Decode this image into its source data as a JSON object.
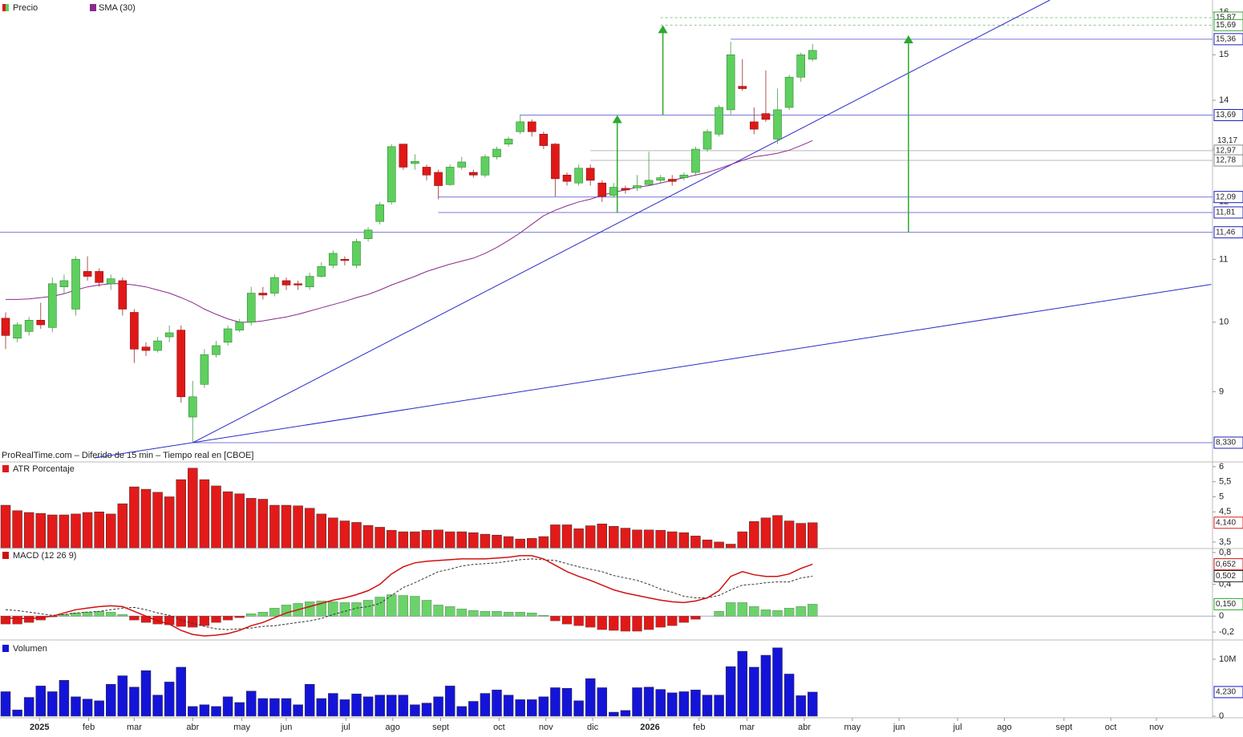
{
  "chart_data": [
    {
      "type": "candlestick",
      "name": "Precio",
      "source": "ProRealTime.com – Diferido de 15 min – Tiempo real en [CBOE]",
      "log": true,
      "ylim": [
        8.1,
        16.3
      ],
      "yticks": [
        9,
        10,
        11,
        12,
        13,
        14,
        15,
        16
      ],
      "up_color": "#5fcf5f",
      "down_color": "#e01818",
      "open": [
        10.06,
        9.76,
        9.86,
        10.03,
        9.92,
        10.55,
        10.2,
        10.8,
        10.8,
        10.6,
        10.65,
        10.15,
        9.63,
        9.58,
        9.78,
        9.88,
        8.66,
        9.1,
        9.52,
        9.7,
        9.88,
        10.0,
        10.45,
        10.45,
        10.65,
        10.6,
        10.55,
        10.72,
        10.9,
        11.0,
        10.9,
        11.35,
        11.65,
        12.0,
        13.1,
        12.72,
        12.65,
        12.55,
        12.32,
        12.65,
        12.55,
        12.5,
        12.85,
        13.1,
        13.35,
        13.55,
        13.3,
        13.1,
        12.5,
        12.35,
        12.63,
        12.35,
        12.12,
        12.25,
        12.26,
        12.32,
        12.4,
        12.42,
        12.45,
        12.55,
        13.0,
        13.3,
        13.8,
        14.3,
        13.55,
        13.72,
        13.2,
        13.85,
        14.5,
        14.9
      ],
      "high": [
        10.15,
        10.0,
        10.08,
        10.3,
        10.7,
        10.75,
        11.05,
        11.05,
        10.85,
        10.75,
        10.7,
        10.2,
        9.7,
        9.78,
        9.95,
        9.95,
        9.15,
        9.6,
        9.72,
        9.95,
        10.05,
        10.55,
        10.55,
        10.75,
        10.7,
        10.65,
        10.78,
        10.95,
        11.15,
        11.05,
        11.35,
        11.55,
        12.0,
        13.1,
        13.1,
        12.9,
        12.7,
        12.6,
        12.7,
        12.85,
        12.6,
        12.9,
        13.05,
        13.25,
        13.7,
        13.6,
        13.35,
        13.12,
        12.55,
        12.7,
        12.7,
        12.4,
        12.35,
        12.3,
        12.5,
        12.95,
        12.5,
        12.5,
        12.55,
        13.05,
        13.4,
        13.9,
        15.3,
        14.9,
        13.85,
        14.65,
        14.25,
        14.55,
        15.05,
        15.25
      ],
      "low": [
        9.6,
        9.7,
        9.8,
        9.9,
        9.85,
        10.45,
        10.1,
        10.65,
        10.55,
        10.5,
        10.1,
        9.4,
        9.5,
        9.55,
        9.7,
        8.85,
        8.33,
        9.05,
        9.48,
        9.65,
        9.85,
        9.95,
        10.35,
        10.4,
        10.5,
        10.5,
        10.5,
        10.7,
        10.85,
        10.9,
        10.85,
        11.3,
        11.6,
        11.95,
        12.6,
        12.6,
        12.4,
        12.05,
        12.3,
        12.6,
        12.45,
        12.45,
        12.8,
        13.05,
        13.3,
        13.25,
        13.0,
        12.1,
        12.3,
        12.3,
        12.3,
        12.0,
        12.08,
        12.15,
        12.2,
        12.3,
        12.35,
        12.3,
        12.4,
        12.5,
        12.95,
        13.25,
        13.7,
        14.2,
        13.3,
        13.55,
        13.1,
        13.8,
        14.4,
        14.85
      ],
      "close": [
        9.8,
        9.96,
        10.03,
        9.96,
        10.6,
        10.65,
        11.0,
        10.72,
        10.62,
        10.68,
        10.2,
        9.6,
        9.58,
        9.72,
        9.84,
        8.93,
        8.93,
        9.52,
        9.65,
        9.9,
        10.0,
        10.45,
        10.42,
        10.7,
        10.58,
        10.58,
        10.72,
        10.88,
        11.1,
        10.98,
        11.3,
        11.5,
        11.95,
        13.05,
        12.65,
        12.76,
        12.5,
        12.3,
        12.65,
        12.75,
        12.5,
        12.85,
        13.0,
        13.2,
        13.55,
        13.35,
        13.07,
        12.43,
        12.38,
        12.63,
        12.4,
        12.1,
        12.27,
        12.22,
        12.3,
        12.4,
        12.45,
        12.38,
        12.5,
        13.0,
        13.35,
        13.85,
        15.0,
        14.25,
        13.4,
        13.6,
        13.8,
        14.5,
        15.0,
        15.1
      ],
      "sma": {
        "name": "SMA (30)",
        "color": "#8b2a8b",
        "last_label": "13,17",
        "values": [
          10.35,
          10.35,
          10.36,
          10.38,
          10.4,
          10.44,
          10.5,
          10.55,
          10.58,
          10.6,
          10.6,
          10.58,
          10.55,
          10.5,
          10.45,
          10.38,
          10.3,
          10.2,
          10.12,
          10.05,
          10.0,
          10.0,
          10.02,
          10.05,
          10.08,
          10.12,
          10.17,
          10.22,
          10.27,
          10.32,
          10.38,
          10.43,
          10.5,
          10.58,
          10.65,
          10.72,
          10.8,
          10.86,
          10.92,
          10.97,
          11.02,
          11.1,
          11.2,
          11.32,
          11.45,
          11.6,
          11.75,
          11.85,
          11.93,
          12.0,
          12.05,
          12.12,
          12.18,
          12.22,
          12.27,
          12.3,
          12.35,
          12.4,
          12.45,
          12.5,
          12.55,
          12.62,
          12.7,
          12.78,
          12.85,
          12.88,
          12.92,
          12.98,
          13.07,
          13.17
        ]
      },
      "levels": [
        {
          "value": 15.87,
          "label": "15,87",
          "color": "#3aa63a",
          "start": 56,
          "style": "dashed"
        },
        {
          "value": 15.69,
          "label": "15,69",
          "color": "#3aa63a",
          "start": 56,
          "style": "dashed"
        },
        {
          "value": 15.36,
          "label": "15,36",
          "color": "#1f1fbf",
          "start": 62,
          "style": "solid"
        },
        {
          "value": 13.69,
          "label": "13,69",
          "color": "#1f1fbf",
          "start": 44,
          "style": "solid"
        },
        {
          "value": 12.97,
          "label": "12,97",
          "color": "#888888",
          "start": 50,
          "style": "solid"
        },
        {
          "value": 12.78,
          "label": "12,78",
          "color": "#888888",
          "start": 50,
          "style": "solid"
        },
        {
          "value": 12.09,
          "label": "12,09",
          "color": "#1f1fbf",
          "start": 37,
          "style": "solid"
        },
        {
          "value": 11.81,
          "label": "11,81",
          "color": "#1f1fbf",
          "start": 37,
          "style": "solid"
        },
        {
          "value": 11.46,
          "label": "11,46",
          "color": "#1f1fbf",
          "start": -0.5,
          "style": "solid"
        },
        {
          "value": 8.33,
          "label": "8,330",
          "color": "#1f1fbf",
          "start": 16,
          "style": "solid"
        }
      ],
      "trendlines": [
        {
          "color": "#2a2ac8",
          "points": [
            [
              16,
              8.33
            ],
            [
              89.3,
              16.3
            ]
          ]
        },
        {
          "color": "#2a2ac8",
          "points": [
            [
              7.6,
              8.14
            ],
            [
              103.1,
              10.59
            ]
          ]
        }
      ],
      "arrows": [
        {
          "color": "#2ea82e",
          "x": 52.3,
          "from": 11.81,
          "to": 13.69
        },
        {
          "color": "#2ea82e",
          "x": 56.2,
          "from": 13.69,
          "to": 15.69
        },
        {
          "color": "#2ea82e",
          "x": 77.2,
          "from": 11.46,
          "to": 15.45
        }
      ]
    },
    {
      "type": "bar",
      "name": "ATR Porcentaje",
      "color": "#e31a1a",
      "last_label": "4,140",
      "ylim": [
        3.31,
        6.13
      ],
      "yticks": [
        6,
        {
          "value": 5.5,
          "label": "5,5"
        },
        5,
        {
          "value": 4.5,
          "label": "4,5"
        },
        {
          "value": 3.5,
          "label": "3,5"
        }
      ],
      "values": [
        4.72,
        4.54,
        4.48,
        4.45,
        4.4,
        4.4,
        4.43,
        4.48,
        4.5,
        4.43,
        4.77,
        5.33,
        5.25,
        5.15,
        5.0,
        5.57,
        5.95,
        5.57,
        5.36,
        5.17,
        5.1,
        4.95,
        4.92,
        4.72,
        4.72,
        4.7,
        4.62,
        4.43,
        4.3,
        4.2,
        4.15,
        4.05,
        3.99,
        3.89,
        3.84,
        3.84,
        3.89,
        3.9,
        3.84,
        3.84,
        3.81,
        3.76,
        3.73,
        3.68,
        3.6,
        3.62,
        3.68,
        4.07,
        4.07,
        3.94,
        4.04,
        4.1,
        4.02,
        3.96,
        3.9,
        3.9,
        3.89,
        3.84,
        3.81,
        3.7,
        3.57,
        3.5,
        3.43,
        3.84,
        4.18,
        4.3,
        4.38,
        4.2,
        4.12,
        4.14
      ]
    },
    {
      "type": "macd",
      "name": "MACD (12 26 9)",
      "ylim": [
        -0.29,
        0.84
      ],
      "yticks": [
        {
          "value": 0.8,
          "label": "0,8"
        },
        {
          "value": 0.4,
          "label": "0,4"
        },
        0,
        {
          "value": -0.2,
          "label": "-0,2"
        }
      ],
      "macd": {
        "color": "#d01010",
        "last_label": "0,652",
        "values": [
          -0.02,
          -0.03,
          -0.03,
          -0.02,
          0.0,
          0.04,
          0.08,
          0.1,
          0.12,
          0.13,
          0.12,
          0.06,
          0.0,
          -0.06,
          -0.1,
          -0.18,
          -0.23,
          -0.25,
          -0.24,
          -0.22,
          -0.18,
          -0.12,
          -0.08,
          -0.02,
          0.04,
          0.08,
          0.12,
          0.16,
          0.2,
          0.23,
          0.27,
          0.32,
          0.4,
          0.53,
          0.62,
          0.67,
          0.69,
          0.7,
          0.71,
          0.72,
          0.72,
          0.72,
          0.73,
          0.74,
          0.76,
          0.76,
          0.72,
          0.64,
          0.56,
          0.5,
          0.45,
          0.39,
          0.33,
          0.29,
          0.26,
          0.23,
          0.2,
          0.18,
          0.17,
          0.19,
          0.23,
          0.32,
          0.5,
          0.56,
          0.52,
          0.5,
          0.5,
          0.53,
          0.6,
          0.652
        ]
      },
      "signal": {
        "color": "#333333",
        "last_label": "0,502",
        "values": [
          0.08,
          0.07,
          0.05,
          0.03,
          0.01,
          0.02,
          0.04,
          0.05,
          0.06,
          0.08,
          0.1,
          0.11,
          0.08,
          0.04,
          0.01,
          -0.05,
          -0.09,
          -0.13,
          -0.16,
          -0.17,
          -0.16,
          -0.15,
          -0.13,
          -0.12,
          -0.1,
          -0.08,
          -0.06,
          -0.03,
          0.02,
          0.06,
          0.1,
          0.12,
          0.16,
          0.26,
          0.36,
          0.42,
          0.49,
          0.56,
          0.59,
          0.63,
          0.65,
          0.66,
          0.67,
          0.69,
          0.71,
          0.72,
          0.71,
          0.7,
          0.66,
          0.62,
          0.59,
          0.56,
          0.51,
          0.48,
          0.45,
          0.4,
          0.34,
          0.3,
          0.25,
          0.23,
          0.23,
          0.26,
          0.33,
          0.39,
          0.4,
          0.42,
          0.43,
          0.43,
          0.48,
          0.502
        ]
      },
      "histogram": {
        "up_color": "#6ad36a",
        "down_color": "#e01818",
        "last_label": "0,150",
        "values": [
          -0.1,
          -0.1,
          -0.08,
          -0.05,
          -0.01,
          0.02,
          0.04,
          0.05,
          0.06,
          0.05,
          0.02,
          -0.05,
          -0.08,
          -0.1,
          -0.11,
          -0.13,
          -0.14,
          -0.12,
          -0.08,
          -0.05,
          -0.02,
          0.03,
          0.05,
          0.1,
          0.14,
          0.16,
          0.18,
          0.19,
          0.18,
          0.17,
          0.17,
          0.2,
          0.24,
          0.27,
          0.26,
          0.25,
          0.2,
          0.14,
          0.12,
          0.09,
          0.07,
          0.06,
          0.06,
          0.05,
          0.05,
          0.04,
          0.01,
          -0.06,
          -0.1,
          -0.12,
          -0.14,
          -0.17,
          -0.18,
          -0.19,
          -0.19,
          -0.17,
          -0.14,
          -0.12,
          -0.08,
          -0.04,
          0.0,
          0.06,
          0.17,
          0.17,
          0.12,
          0.08,
          0.07,
          0.1,
          0.12,
          0.15
        ]
      }
    },
    {
      "type": "bar",
      "name": "Volumen",
      "color": "#1414d8",
      "last_label": "4,230",
      "ylim": [
        0,
        13.1
      ],
      "yticks": [
        0,
        {
          "value": 10,
          "label": "10M"
        }
      ],
      "values": [
        4.3,
        1.1,
        3.3,
        5.3,
        4.3,
        6.3,
        3.4,
        3.0,
        2.7,
        5.6,
        7.1,
        5.1,
        8.0,
        3.7,
        6.0,
        8.6,
        1.7,
        2.0,
        1.7,
        3.4,
        2.4,
        4.4,
        3.1,
        3.1,
        3.1,
        2.0,
        5.6,
        3.1,
        4.0,
        2.9,
        3.9,
        3.4,
        3.7,
        3.7,
        3.7,
        2.0,
        2.3,
        3.4,
        5.3,
        1.7,
        2.6,
        4.0,
        4.6,
        3.7,
        2.9,
        2.9,
        3.4,
        5.0,
        4.9,
        2.7,
        6.6,
        5.0,
        0.7,
        1.0,
        5.0,
        5.1,
        4.7,
        4.1,
        4.3,
        4.6,
        3.7,
        3.7,
        8.7,
        11.4,
        8.6,
        10.7,
        12.0,
        7.4,
        3.6,
        4.23
      ],
      "xlim": [
        -0.48,
        103.2
      ],
      "xticks": [
        {
          "value": 2.9,
          "label": "2025"
        },
        {
          "value": 7.1,
          "label": "feb"
        },
        {
          "value": 11.0,
          "label": "mar"
        },
        {
          "value": 16.0,
          "label": "abr"
        },
        {
          "value": 20.2,
          "label": "may"
        },
        {
          "value": 24.0,
          "label": "jun"
        },
        {
          "value": 29.1,
          "label": "jul"
        },
        {
          "value": 33.1,
          "label": "ago"
        },
        {
          "value": 37.2,
          "label": "sept"
        },
        {
          "value": 42.2,
          "label": "oct"
        },
        {
          "value": 46.2,
          "label": "nov"
        },
        {
          "value": 50.2,
          "label": "dic"
        },
        {
          "value": 55.1,
          "label": "2026"
        },
        {
          "value": 59.3,
          "label": "feb"
        },
        {
          "value": 63.4,
          "label": "mar"
        },
        {
          "value": 68.3,
          "label": "abr"
        },
        {
          "value": 72.4,
          "label": "may"
        },
        {
          "value": 76.4,
          "label": "jun"
        },
        {
          "value": 81.4,
          "label": "jul"
        },
        {
          "value": 85.4,
          "label": "ago"
        },
        {
          "value": 90.5,
          "label": "sept"
        },
        {
          "value": 94.5,
          "label": "oct"
        },
        {
          "value": 98.4,
          "label": "nov"
        }
      ]
    }
  ]
}
